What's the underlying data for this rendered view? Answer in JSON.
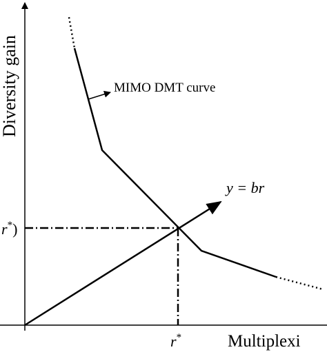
{
  "axes": {
    "y_label": "Diversity gain",
    "x_label": "Multiplexi"
  },
  "annotations": {
    "curve_label": "MIMO DMT curve",
    "line_label": "y = br",
    "y_marker": {
      "base": "r",
      "sup": "*",
      "tail": ")"
    },
    "x_marker": {
      "base": "r",
      "sup": "*"
    }
  }
}
